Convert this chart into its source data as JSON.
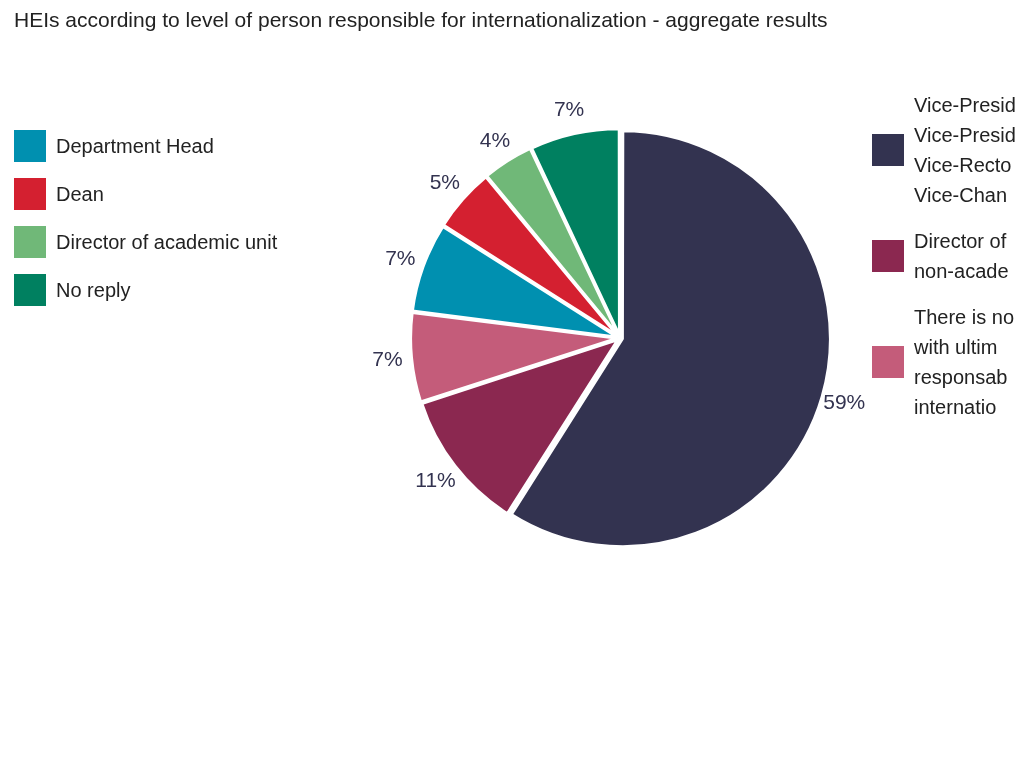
{
  "chart_data": {
    "type": "pie",
    "title": "HEIs according to level of person responsible for internationalization - aggregate results",
    "categories": [
      "Vice-Presid\nVice-Presid\nVice-Recto\nVice-Chan",
      "Director of\nnon-acade",
      "There is no\nwith ultim\nresponsab\ninternatio",
      "Department Head",
      "Dean",
      "Director of academic unit",
      "No reply"
    ],
    "values": [
      59,
      11,
      7,
      7,
      5,
      4,
      7
    ],
    "value_labels": [
      "59%",
      "11%",
      "7%",
      "7%",
      "5%",
      "4%",
      "7%"
    ],
    "colors": [
      "#333350",
      "#8b2850",
      "#c45c7a",
      "#0090b0",
      "#d42030",
      "#70b878",
      "#008060"
    ],
    "legend": "left"
  }
}
